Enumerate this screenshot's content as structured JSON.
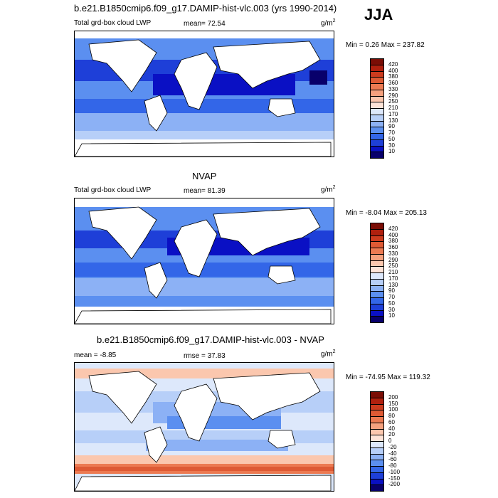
{
  "season": "JJA",
  "panels": [
    {
      "title": "b.e21.B1850cmip6.f09_g17.DAMIP-hist-vlc.003 (yrs 1990-2014)",
      "left_label": "Total grd-box cloud LWP",
      "mean_label": "mean=  72.54",
      "units_base": "g/m",
      "units_exp": "2",
      "minmax": "Min =   0.26 Max = 237.82",
      "colorbar_labels": [
        "420",
        "400",
        "380",
        "360",
        "330",
        "290",
        "250",
        "210",
        "170",
        "130",
        "90",
        "70",
        "50",
        "30",
        "10"
      ]
    },
    {
      "title": "NVAP",
      "left_label": "Total grd-box cloud LWP",
      "mean_label": "mean=  81.39",
      "units_base": "g/m",
      "units_exp": "2",
      "minmax": "Min =  -8.04 Max = 205.13",
      "colorbar_labels": [
        "420",
        "400",
        "380",
        "360",
        "330",
        "290",
        "250",
        "210",
        "170",
        "130",
        "90",
        "70",
        "50",
        "30",
        "10"
      ]
    },
    {
      "title": "b.e21.B1850cmip6.f09_g17.DAMIP-hist-vlc.003 - NVAP",
      "left_label": "mean =  -8.85",
      "mean_label": "rmse =  37.83",
      "units_base": "g/m",
      "units_exp": "2",
      "minmax": "Min = -74.95 Max = 119.32",
      "colorbar_labels": [
        "200",
        "150",
        "100",
        "80",
        "60",
        "40",
        "20",
        "0",
        "-20",
        "-40",
        "-60",
        "-80",
        "-100",
        "-150",
        "-200"
      ]
    }
  ],
  "colors": {
    "abs_scale": [
      "#08006b",
      "#0a10c4",
      "#1e3fd8",
      "#3366e8",
      "#5b8ff0",
      "#8cb1f5",
      "#b7cff8",
      "#dde8fb",
      "#fde4d8",
      "#fbc7ae",
      "#f5a17e",
      "#ec7a52",
      "#de5a34",
      "#cc3b1e",
      "#b0200e",
      "#7a0d05"
    ],
    "diff_scale": [
      "#08006b",
      "#0a10c4",
      "#1e3fd8",
      "#3366e8",
      "#5b8ff0",
      "#8cb1f5",
      "#b7cff8",
      "#dde8fb",
      "#fde4d8",
      "#fbc7ae",
      "#f5a17e",
      "#ec7a52",
      "#de5a34",
      "#cc3b1e",
      "#b0200e",
      "#7a0d05"
    ]
  },
  "chart_data": [
    {
      "type": "heatmap",
      "title": "b.e21.B1850cmip6.f09_g17.DAMIP-hist-vlc.003 (yrs 1990-2014)",
      "variable": "Total grd-box cloud LWP",
      "units": "g/m2",
      "season": "JJA",
      "mean": 72.54,
      "min": 0.26,
      "max": 237.82,
      "contour_levels": [
        10,
        30,
        50,
        70,
        90,
        130,
        170,
        210,
        250,
        290,
        330,
        360,
        380,
        400,
        420
      ]
    },
    {
      "type": "heatmap",
      "title": "NVAP",
      "variable": "Total grd-box cloud LWP",
      "units": "g/m2",
      "mean": 81.39,
      "min": -8.04,
      "max": 205.13,
      "contour_levels": [
        10,
        30,
        50,
        70,
        90,
        130,
        170,
        210,
        250,
        290,
        330,
        360,
        380,
        400,
        420
      ]
    },
    {
      "type": "heatmap",
      "title": "b.e21.B1850cmip6.f09_g17.DAMIP-hist-vlc.003 - NVAP",
      "units": "g/m2",
      "mean": -8.85,
      "rmse": 37.83,
      "min": -74.95,
      "max": 119.32,
      "contour_levels": [
        -200,
        -150,
        -100,
        -80,
        -60,
        -40,
        -20,
        0,
        20,
        40,
        60,
        80,
        100,
        150,
        200
      ]
    }
  ]
}
